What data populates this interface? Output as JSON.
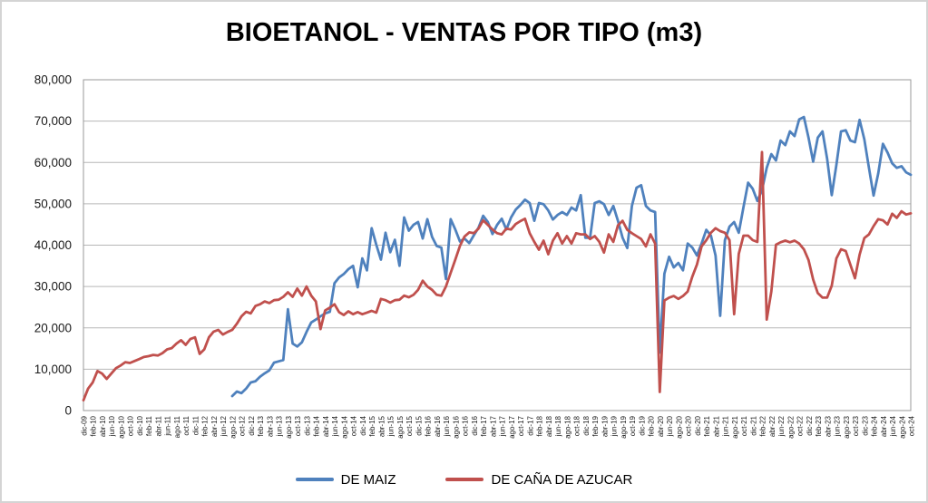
{
  "chart_data": {
    "type": "line",
    "title": "BIOETANOL - VENTAS POR TIPO (m3)",
    "xlabel": "",
    "ylabel": "",
    "ylim": [
      0,
      80000
    ],
    "y_tick_step": 10000,
    "y_tick_labels": [
      "0",
      "10,000",
      "20,000",
      "30,000",
      "40,000",
      "50,000",
      "60,000",
      "70,000",
      "80,000"
    ],
    "grid": "horizontal",
    "legend_position": "bottom",
    "x_labels_every": 2,
    "x_tick_labels": [
      "dic-09",
      "feb-10",
      "abr-10",
      "jun-10",
      "ago-10",
      "oct-10",
      "dic-10",
      "feb-11",
      "abr-11",
      "jun-11",
      "ago-11",
      "oct-11",
      "dic-11",
      "feb-12",
      "abr-12",
      "jun-12",
      "ago-12",
      "oct-12",
      "dic-12",
      "feb-13",
      "abr-13",
      "jun-13",
      "ago-13",
      "oct-13",
      "dic-13",
      "feb-14",
      "abr-14",
      "jun-14",
      "ago-14",
      "oct-14",
      "dic-14",
      "feb-15",
      "abr-15",
      "jun-15",
      "ago-15",
      "oct-15",
      "dic-15",
      "feb-16",
      "abr-16",
      "jun-16",
      "ago-16",
      "oct-16",
      "dic-16",
      "feb-17",
      "abr-17",
      "jun-17",
      "ago-17",
      "oct-17",
      "dic-17",
      "feb-18",
      "abr-18",
      "jun-18",
      "ago-18",
      "oct-18",
      "dic-18",
      "feb-19",
      "abr-19",
      "jun-19",
      "ago-19",
      "oct-19",
      "dic-19",
      "feb-20",
      "abr-20",
      "jun-20",
      "ago-20",
      "oct-20",
      "dic-20",
      "feb-21",
      "abr-21",
      "jun-21",
      "ago-21",
      "oct-21",
      "dic-21",
      "feb-22",
      "abr-22",
      "jun-22",
      "ago-22",
      "oct-22",
      "dic-22",
      "feb-23",
      "abr-23",
      "jun-23",
      "ago-23",
      "oct-23",
      "dic-23",
      "feb-24",
      "abr-24",
      "jun-24",
      "ago-24",
      "oct-24"
    ],
    "series": [
      {
        "name": "DE MAIZ",
        "color": "#4F81BD",
        "values": [
          null,
          null,
          null,
          null,
          null,
          null,
          null,
          null,
          null,
          null,
          null,
          null,
          null,
          null,
          null,
          null,
          null,
          null,
          null,
          null,
          null,
          null,
          null,
          null,
          null,
          null,
          null,
          null,
          null,
          null,
          null,
          null,
          3500,
          4600,
          4200,
          5300,
          6800,
          7100,
          8200,
          9000,
          9700,
          11600,
          11900,
          12200,
          24500,
          16200,
          15500,
          16500,
          19000,
          21300,
          22000,
          22800,
          23500,
          23900,
          30800,
          32200,
          33000,
          34200,
          35000,
          29800,
          36800,
          33900,
          44100,
          40100,
          36500,
          43000,
          38300,
          41300,
          35000,
          46700,
          43500,
          44900,
          45600,
          41600,
          46300,
          42000,
          39800,
          39400,
          31800,
          46300,
          43800,
          40900,
          41600,
          40500,
          42400,
          44200,
          47100,
          45600,
          42700,
          44900,
          46400,
          43800,
          46700,
          48600,
          49700,
          51000,
          50200,
          45900,
          50200,
          49900,
          48400,
          46200,
          47300,
          48000,
          47300,
          49100,
          48400,
          52100,
          41800,
          41800,
          50200,
          50600,
          49900,
          47300,
          49500,
          45900,
          41800,
          39300,
          49500,
          53900,
          54500,
          49500,
          48400,
          48000,
          14000,
          33100,
          37200,
          34600,
          35700,
          33900,
          40400,
          39400,
          37500,
          40400,
          43700,
          42300,
          37500,
          22900,
          41200,
          44500,
          45600,
          43000,
          49200,
          55100,
          53600,
          50700,
          53300,
          58700,
          62000,
          60500,
          65300,
          64200,
          67500,
          66400,
          70400,
          71000,
          66000,
          60200,
          66000,
          67500,
          60900,
          52100,
          59400,
          67500,
          67800,
          65300,
          64900,
          70300,
          65600,
          58700,
          52000,
          57300,
          64500,
          62400,
          59800,
          58700,
          59100,
          57600,
          57000
        ]
      },
      {
        "name": "DE CAÑA DE AZUCAR",
        "color": "#C0504D",
        "values": [
          2500,
          5300,
          6800,
          9550,
          8950,
          7650,
          8950,
          10250,
          10900,
          11700,
          11500,
          12000,
          12450,
          12950,
          13150,
          13450,
          13300,
          13900,
          14800,
          15100,
          16200,
          17000,
          15900,
          17300,
          17700,
          13700,
          14800,
          17700,
          19100,
          19500,
          18400,
          19000,
          19500,
          21000,
          22800,
          23900,
          23500,
          25300,
          25700,
          26400,
          26000,
          26700,
          26800,
          27500,
          28600,
          27500,
          29500,
          27800,
          30000,
          27800,
          26400,
          19700,
          24200,
          24900,
          25700,
          23800,
          23100,
          24000,
          23300,
          23800,
          23300,
          23700,
          24100,
          23700,
          27000,
          26700,
          26100,
          26700,
          26800,
          27800,
          27400,
          28000,
          29200,
          31400,
          30000,
          29200,
          28000,
          27800,
          30000,
          33300,
          36500,
          39800,
          42100,
          43100,
          42900,
          44000,
          46000,
          44900,
          43800,
          42900,
          42600,
          44000,
          43800,
          45100,
          45800,
          46400,
          42900,
          40800,
          38900,
          41100,
          37800,
          41100,
          42900,
          40400,
          42200,
          40400,
          42900,
          42600,
          42600,
          41500,
          42200,
          40800,
          38200,
          42600,
          40800,
          44800,
          45900,
          43700,
          42900,
          42200,
          41500,
          39700,
          42600,
          40400,
          4500,
          26600,
          27300,
          27700,
          27000,
          27700,
          28800,
          32400,
          35300,
          39700,
          41200,
          43000,
          44100,
          43400,
          43000,
          41200,
          23300,
          37900,
          42300,
          42300,
          41200,
          40800,
          62500,
          22000,
          28800,
          40100,
          40700,
          41100,
          40700,
          41100,
          40400,
          39000,
          36400,
          31700,
          28400,
          27300,
          27300,
          30200,
          36800,
          39000,
          38600,
          35300,
          32000,
          37700,
          41700,
          42600,
          44600,
          46300,
          46000,
          45000,
          47600,
          46600,
          48200,
          47400,
          47700
        ]
      }
    ]
  }
}
